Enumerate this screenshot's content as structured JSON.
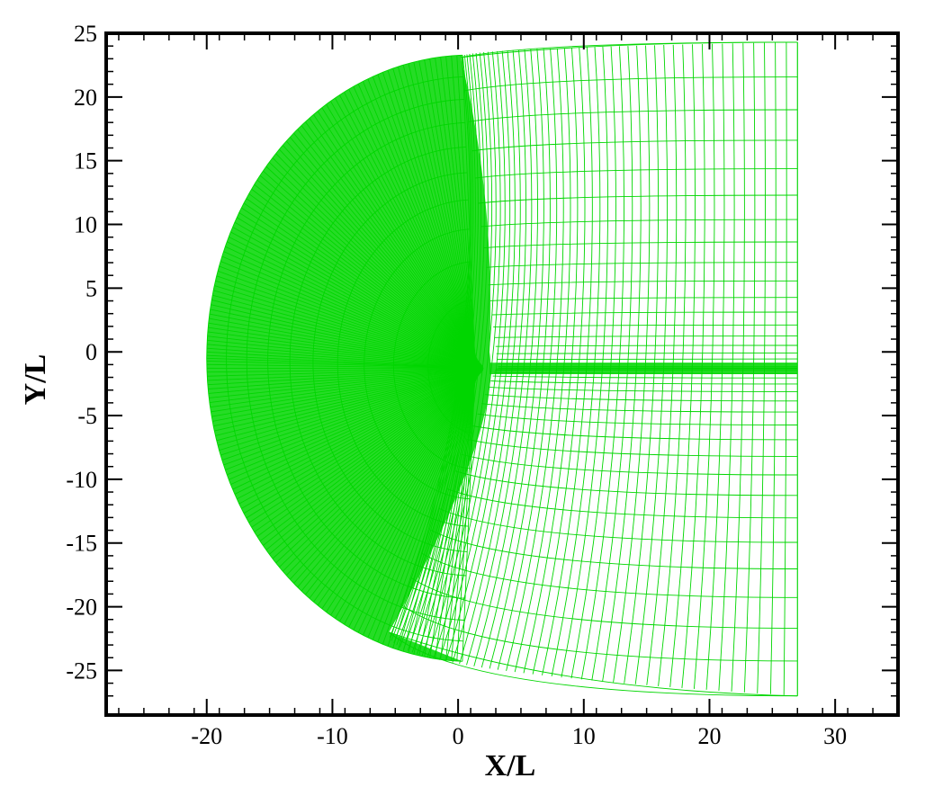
{
  "chart_data": {
    "type": "grid-mesh",
    "title": "",
    "xlabel": "X/L",
    "ylabel": "Y/L",
    "xlim": [
      -28,
      35
    ],
    "ylim": [
      -28.5,
      25
    ],
    "xticks": [
      -20,
      -10,
      0,
      10,
      20,
      30
    ],
    "yticks": [
      25,
      20,
      15,
      10,
      5,
      0,
      -5,
      -10,
      -15,
      -20,
      -25
    ],
    "xtick_labels": [
      "-20",
      "-10",
      "0",
      "10",
      "20",
      "30"
    ],
    "ytick_labels": [
      "25",
      "20",
      "15",
      "10",
      "5",
      "0",
      "-5",
      "-10",
      "-15",
      "-20",
      "-25"
    ],
    "mesh_color": "#00d600",
    "mesh": {
      "outer_boundary": {
        "upper_start": [
          0,
          23.1
        ],
        "left_tip": [
          -20,
          0
        ],
        "lower_end": [
          -6,
          -22
        ]
      },
      "wake_line_y": -1.3,
      "outlet_x": 27,
      "outlet_y_top": 24.3,
      "outlet_y_bottom": -27
    },
    "grid": false,
    "legend": "none"
  }
}
